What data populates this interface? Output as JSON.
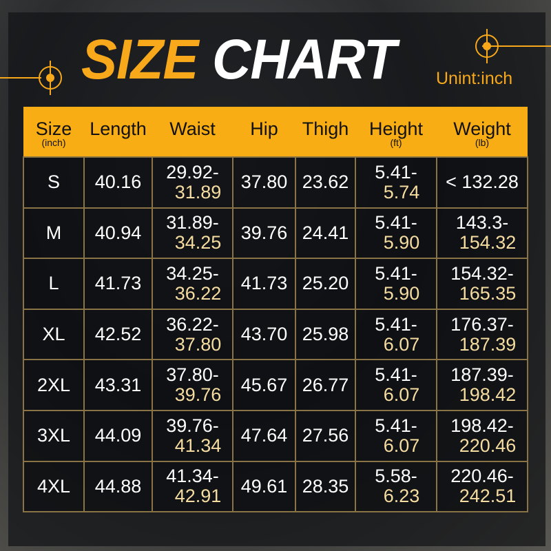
{
  "title": {
    "word1": "SIZE",
    "word2": "CHART",
    "unit": "Unint:inch"
  },
  "accent": "#f9ad14",
  "highlight": "#f5dca0",
  "headers": [
    {
      "label": "Size",
      "sub": "(inch)"
    },
    {
      "label": "Length",
      "sub": ""
    },
    {
      "label": "Waist",
      "sub": ""
    },
    {
      "label": "Hip",
      "sub": ""
    },
    {
      "label": "Thigh",
      "sub": ""
    },
    {
      "label": "Height",
      "sub": "(ft)"
    },
    {
      "label": "Weight",
      "sub": "(lb)"
    }
  ],
  "rows": [
    {
      "size": "S",
      "length": "40.16",
      "waist": [
        "29.92-",
        "31.89"
      ],
      "hip": "37.80",
      "thigh": "23.62",
      "height": [
        "5.41-",
        "5.74"
      ],
      "weight": [
        "< 132.28",
        ""
      ]
    },
    {
      "size": "M",
      "length": "40.94",
      "waist": [
        "31.89-",
        "34.25"
      ],
      "hip": "39.76",
      "thigh": "24.41",
      "height": [
        "5.41-",
        "5.90"
      ],
      "weight": [
        "143.3-",
        "154.32"
      ]
    },
    {
      "size": "L",
      "length": "41.73",
      "waist": [
        "34.25-",
        "36.22"
      ],
      "hip": "41.73",
      "thigh": "25.20",
      "height": [
        "5.41-",
        "5.90"
      ],
      "weight": [
        "154.32-",
        "165.35"
      ]
    },
    {
      "size": "XL",
      "length": "42.52",
      "waist": [
        "36.22-",
        "37.80"
      ],
      "hip": "43.70",
      "thigh": "25.98",
      "height": [
        "5.41-",
        "6.07"
      ],
      "weight": [
        "176.37-",
        "187.39"
      ]
    },
    {
      "size": "2XL",
      "length": "43.31",
      "waist": [
        "37.80-",
        "39.76"
      ],
      "hip": "45.67",
      "thigh": "26.77",
      "height": [
        "5.41-",
        "6.07"
      ],
      "weight": [
        "187.39-",
        "198.42"
      ]
    },
    {
      "size": "3XL",
      "length": "44.09",
      "waist": [
        "39.76-",
        "41.34"
      ],
      "hip": "47.64",
      "thigh": "27.56",
      "height": [
        "5.41-",
        "6.07"
      ],
      "weight": [
        "198.42-",
        "220.46"
      ]
    },
    {
      "size": "4XL",
      "length": "44.88",
      "waist": [
        "41.34-",
        "42.91"
      ],
      "hip": "49.61",
      "thigh": "28.35",
      "height": [
        "5.58-",
        "6.23"
      ],
      "weight": [
        "220.46-",
        "242.51"
      ]
    }
  ]
}
